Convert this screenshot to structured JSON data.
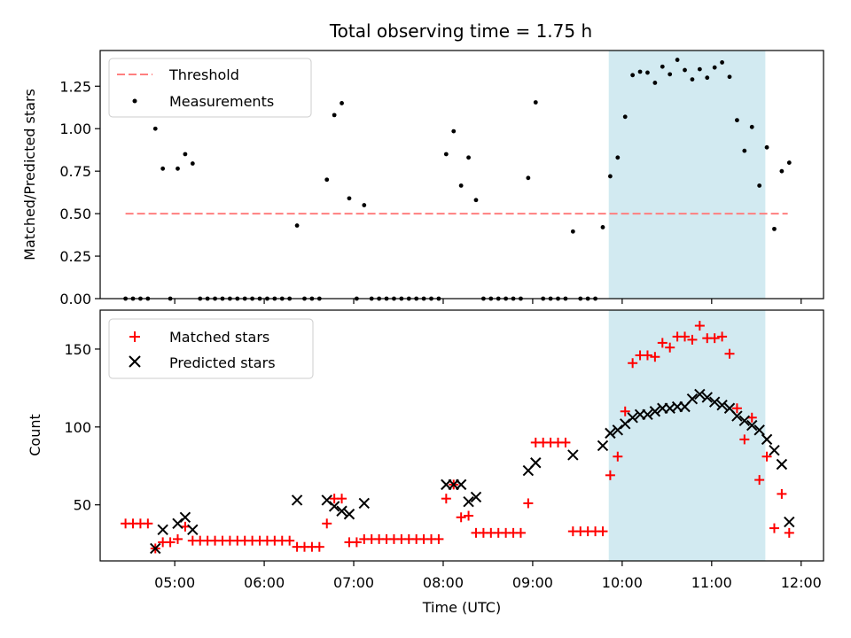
{
  "chart_data": [
    {
      "type": "scatter",
      "title": "Total observing time = 1.75 h",
      "ylabel": "Matched/Predicted stars",
      "ylim": [
        0,
        1.46
      ],
      "yticks": [
        0.0,
        0.25,
        0.5,
        0.75,
        1.0,
        1.25
      ],
      "ytick_labels": [
        "0.00",
        "0.25",
        "0.50",
        "0.75",
        "1.00",
        "1.25"
      ],
      "highlight_span": [
        "09:51",
        "11:36"
      ],
      "highlight_color": "#add8e6",
      "legend_position": "upper-left",
      "threshold": {
        "name": "Threshold",
        "value": 0.5,
        "x_start": "04:27",
        "x_end": "11:51",
        "color": "#ff7f7f",
        "style": "dashed"
      },
      "series": [
        {
          "name": "Measurements",
          "marker": "dot",
          "color": "#000000",
          "points": [
            [
              "04:27",
              0.0
            ],
            [
              "04:32",
              0.0
            ],
            [
              "04:37",
              0.0
            ],
            [
              "04:42",
              0.0
            ],
            [
              "04:47",
              1.0
            ],
            [
              "04:52",
              0.765
            ],
            [
              "04:57",
              0.0
            ],
            [
              "05:02",
              0.765
            ],
            [
              "05:07",
              0.85
            ],
            [
              "05:12",
              0.795
            ],
            [
              "05:17",
              0.0
            ],
            [
              "05:22",
              0.0
            ],
            [
              "05:27",
              0.0
            ],
            [
              "05:32",
              0.0
            ],
            [
              "05:37",
              0.0
            ],
            [
              "05:42",
              0.0
            ],
            [
              "05:47",
              0.0
            ],
            [
              "05:52",
              0.0
            ],
            [
              "05:57",
              0.0
            ],
            [
              "06:02",
              0.0
            ],
            [
              "06:07",
              0.0
            ],
            [
              "06:12",
              0.0
            ],
            [
              "06:17",
              0.0
            ],
            [
              "06:22",
              0.43
            ],
            [
              "06:27",
              0.0
            ],
            [
              "06:32",
              0.0
            ],
            [
              "06:37",
              0.0
            ],
            [
              "06:42",
              0.7
            ],
            [
              "06:47",
              1.08
            ],
            [
              "06:52",
              1.15
            ],
            [
              "06:57",
              0.59
            ],
            [
              "07:02",
              0.0
            ],
            [
              "07:07",
              0.55
            ],
            [
              "07:12",
              0.0
            ],
            [
              "07:17",
              0.0
            ],
            [
              "07:22",
              0.0
            ],
            [
              "07:27",
              0.0
            ],
            [
              "07:32",
              0.0
            ],
            [
              "07:37",
              0.0
            ],
            [
              "07:42",
              0.0
            ],
            [
              "07:47",
              0.0
            ],
            [
              "07:52",
              0.0
            ],
            [
              "07:57",
              0.0
            ],
            [
              "08:02",
              0.85
            ],
            [
              "08:07",
              0.985
            ],
            [
              "08:12",
              0.665
            ],
            [
              "08:17",
              0.83
            ],
            [
              "08:22",
              0.58
            ],
            [
              "08:27",
              0.0
            ],
            [
              "08:32",
              0.0
            ],
            [
              "08:37",
              0.0
            ],
            [
              "08:42",
              0.0
            ],
            [
              "08:47",
              0.0
            ],
            [
              "08:52",
              0.0
            ],
            [
              "08:57",
              0.71
            ],
            [
              "09:02",
              1.155
            ],
            [
              "09:07",
              0.0
            ],
            [
              "09:12",
              0.0
            ],
            [
              "09:17",
              0.0
            ],
            [
              "09:22",
              0.0
            ],
            [
              "09:27",
              0.395
            ],
            [
              "09:32",
              0.0
            ],
            [
              "09:37",
              0.0
            ],
            [
              "09:42",
              0.0
            ],
            [
              "09:47",
              0.42
            ],
            [
              "09:52",
              0.72
            ],
            [
              "09:57",
              0.83
            ],
            [
              "10:02",
              1.07
            ],
            [
              "10:07",
              1.315
            ],
            [
              "10:12",
              1.335
            ],
            [
              "10:17",
              1.33
            ],
            [
              "10:22",
              1.27
            ],
            [
              "10:27",
              1.365
            ],
            [
              "10:32",
              1.32
            ],
            [
              "10:37",
              1.405
            ],
            [
              "10:42",
              1.345
            ],
            [
              "10:47",
              1.29
            ],
            [
              "10:52",
              1.35
            ],
            [
              "10:57",
              1.3
            ],
            [
              "11:02",
              1.36
            ],
            [
              "11:07",
              1.39
            ],
            [
              "11:12",
              1.305
            ],
            [
              "11:17",
              1.05
            ],
            [
              "11:22",
              0.87
            ],
            [
              "11:27",
              1.01
            ],
            [
              "11:32",
              0.665
            ],
            [
              "11:37",
              0.89
            ],
            [
              "11:42",
              0.41
            ],
            [
              "11:47",
              0.75
            ],
            [
              "11:52",
              0.8
            ]
          ]
        }
      ]
    },
    {
      "type": "scatter",
      "xlabel": "Time (UTC)",
      "ylabel": "Count",
      "ylim": [
        14,
        175
      ],
      "yticks": [
        50,
        100,
        150
      ],
      "ytick_labels": [
        "50",
        "100",
        "150"
      ],
      "xticks": [
        "05:00",
        "06:00",
        "07:00",
        "08:00",
        "09:00",
        "10:00",
        "11:00",
        "12:00"
      ],
      "xtick_labels": [
        "05:00",
        "06:00",
        "07:00",
        "08:00",
        "09:00",
        "10:00",
        "11:00",
        "12:00"
      ],
      "highlight_span": [
        "09:51",
        "11:36"
      ],
      "highlight_color": "#add8e6",
      "legend_position": "upper-left",
      "series": [
        {
          "name": "Matched stars",
          "marker": "plus",
          "color": "#ff0000",
          "points": [
            [
              "04:27",
              38
            ],
            [
              "04:32",
              38
            ],
            [
              "04:37",
              38
            ],
            [
              "04:42",
              38
            ],
            [
              "04:47",
              22
            ],
            [
              "04:52",
              26
            ],
            [
              "04:57",
              26
            ],
            [
              "05:02",
              28
            ],
            [
              "05:07",
              36
            ],
            [
              "05:12",
              27
            ],
            [
              "05:17",
              27
            ],
            [
              "05:22",
              27
            ],
            [
              "05:27",
              27
            ],
            [
              "05:32",
              27
            ],
            [
              "05:37",
              27
            ],
            [
              "05:42",
              27
            ],
            [
              "05:47",
              27
            ],
            [
              "05:52",
              27
            ],
            [
              "05:57",
              27
            ],
            [
              "06:02",
              27
            ],
            [
              "06:07",
              27
            ],
            [
              "06:12",
              27
            ],
            [
              "06:17",
              27
            ],
            [
              "06:22",
              23
            ],
            [
              "06:27",
              23
            ],
            [
              "06:32",
              23
            ],
            [
              "06:37",
              23
            ],
            [
              "06:42",
              38
            ],
            [
              "06:47",
              54
            ],
            [
              "06:52",
              54
            ],
            [
              "06:57",
              26
            ],
            [
              "07:02",
              26
            ],
            [
              "07:07",
              28
            ],
            [
              "07:12",
              28
            ],
            [
              "07:17",
              28
            ],
            [
              "07:22",
              28
            ],
            [
              "07:27",
              28
            ],
            [
              "07:32",
              28
            ],
            [
              "07:37",
              28
            ],
            [
              "07:42",
              28
            ],
            [
              "07:47",
              28
            ],
            [
              "07:52",
              28
            ],
            [
              "07:57",
              28
            ],
            [
              "08:02",
              54
            ],
            [
              "08:07",
              63
            ],
            [
              "08:12",
              42
            ],
            [
              "08:17",
              43
            ],
            [
              "08:22",
              32
            ],
            [
              "08:27",
              32
            ],
            [
              "08:32",
              32
            ],
            [
              "08:37",
              32
            ],
            [
              "08:42",
              32
            ],
            [
              "08:47",
              32
            ],
            [
              "08:52",
              32
            ],
            [
              "08:57",
              51
            ],
            [
              "09:02",
              90
            ],
            [
              "09:07",
              90
            ],
            [
              "09:12",
              90
            ],
            [
              "09:17",
              90
            ],
            [
              "09:22",
              90
            ],
            [
              "09:27",
              33
            ],
            [
              "09:32",
              33
            ],
            [
              "09:37",
              33
            ],
            [
              "09:42",
              33
            ],
            [
              "09:47",
              33
            ],
            [
              "09:52",
              69
            ],
            [
              "09:57",
              81
            ],
            [
              "10:02",
              110
            ],
            [
              "10:07",
              141
            ],
            [
              "10:12",
              146
            ],
            [
              "10:17",
              146
            ],
            [
              "10:22",
              145
            ],
            [
              "10:27",
              154
            ],
            [
              "10:32",
              151
            ],
            [
              "10:37",
              158
            ],
            [
              "10:42",
              158
            ],
            [
              "10:47",
              156
            ],
            [
              "10:52",
              165
            ],
            [
              "10:57",
              157
            ],
            [
              "11:02",
              157
            ],
            [
              "11:07",
              158
            ],
            [
              "11:12",
              147
            ],
            [
              "11:17",
              112
            ],
            [
              "11:22",
              92
            ],
            [
              "11:27",
              106
            ],
            [
              "11:32",
              66
            ],
            [
              "11:37",
              81
            ],
            [
              "11:42",
              35
            ],
            [
              "11:47",
              57
            ],
            [
              "11:52",
              32
            ]
          ]
        },
        {
          "name": "Predicted stars",
          "marker": "x",
          "color": "#000000",
          "points": [
            [
              "04:47",
              22
            ],
            [
              "04:52",
              34
            ],
            [
              "05:02",
              38
            ],
            [
              "05:07",
              42
            ],
            [
              "05:12",
              34
            ],
            [
              "06:22",
              53
            ],
            [
              "06:42",
              53
            ],
            [
              "06:47",
              49
            ],
            [
              "06:52",
              46
            ],
            [
              "06:57",
              44
            ],
            [
              "07:07",
              51
            ],
            [
              "08:02",
              63
            ],
            [
              "08:07",
              63
            ],
            [
              "08:12",
              63
            ],
            [
              "08:17",
              52
            ],
            [
              "08:22",
              55
            ],
            [
              "08:57",
              72
            ],
            [
              "09:02",
              77
            ],
            [
              "09:27",
              82
            ],
            [
              "09:47",
              88
            ],
            [
              "09:52",
              96
            ],
            [
              "09:57",
              98
            ],
            [
              "10:02",
              102
            ],
            [
              "10:07",
              106
            ],
            [
              "10:12",
              108
            ],
            [
              "10:17",
              108
            ],
            [
              "10:22",
              110
            ],
            [
              "10:27",
              112
            ],
            [
              "10:32",
              112
            ],
            [
              "10:37",
              113
            ],
            [
              "10:42",
              113
            ],
            [
              "10:47",
              118
            ],
            [
              "10:52",
              121
            ],
            [
              "10:57",
              119
            ],
            [
              "11:02",
              116
            ],
            [
              "11:07",
              114
            ],
            [
              "11:12",
              112
            ],
            [
              "11:17",
              107
            ],
            [
              "11:22",
              104
            ],
            [
              "11:27",
              101
            ],
            [
              "11:32",
              98
            ],
            [
              "11:37",
              92
            ],
            [
              "11:42",
              85
            ],
            [
              "11:47",
              76
            ],
            [
              "11:52",
              39
            ]
          ]
        }
      ]
    }
  ]
}
